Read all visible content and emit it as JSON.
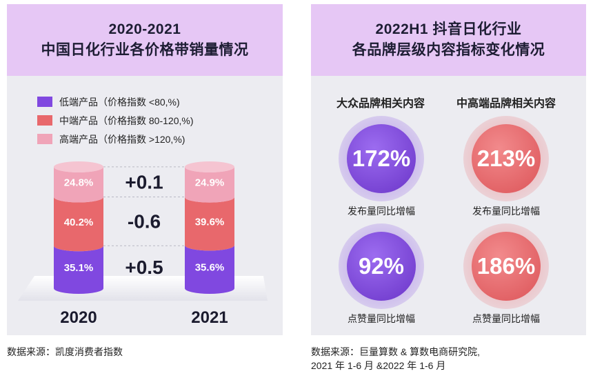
{
  "left_panel": {
    "title_line1": "2020-2021",
    "title_line2": "中国日化行业各价格带销量情况",
    "legend": [
      {
        "label": "低端产品（价格指数 <80,%)",
        "color": "#8048e0"
      },
      {
        "label": "中端产品（价格指数 80-120,%)",
        "color": "#e8686c"
      },
      {
        "label": "高端产品（价格指数 >120,%)",
        "color": "#f0a4b8"
      }
    ],
    "diffs": [
      "+0.1",
      "-0.6",
      "+0.5"
    ],
    "source": "数据来源：凯度消费者指数"
  },
  "chart_data": {
    "type": "bar",
    "stacked": true,
    "categories": [
      "2020",
      "2021"
    ],
    "series": [
      {
        "name": "低端产品（价格指数 <80,%)",
        "values": [
          35.1,
          35.6
        ],
        "labels": [
          "35.1%",
          "35.6%"
        ],
        "color": "#8048e0"
      },
      {
        "name": "中端产品（价格指数 80-120,%)",
        "values": [
          40.2,
          39.6
        ],
        "labels": [
          "40.2%",
          "39.6%"
        ],
        "color": "#e8686c"
      },
      {
        "name": "高端产品（价格指数 >120,%)",
        "values": [
          24.8,
          24.9
        ],
        "labels": [
          "24.8%",
          "24.9%"
        ],
        "color": "#f0a4b8"
      }
    ],
    "legend_position": "top-left"
  },
  "right_panel": {
    "title_line1": "2022H1 抖音日化行业",
    "title_line2": "各品牌层级内容指标变化情况",
    "col_titles": [
      "大众品牌相关内容",
      "中高端品牌相关内容"
    ],
    "metrics": [
      {
        "value": "172%",
        "label": "发布量同比增幅",
        "tone": "purple"
      },
      {
        "value": "213%",
        "label": "发布量同比增幅",
        "tone": "red"
      },
      {
        "value": "92%",
        "label": "点赞量同比增幅",
        "tone": "purple"
      },
      {
        "value": "186%",
        "label": "点赞量同比增幅",
        "tone": "red"
      }
    ],
    "source_line1": "数据来源：巨量算数 & 算数电商研究院,",
    "source_line2": "2021 年 1-6 月 &2022 年 1-6 月"
  },
  "colors": {
    "purple": "#8048e0",
    "red": "#e8686c",
    "pink": "#f0a4b8",
    "header_bg": "#e6c7f5",
    "panel_bg": "#ececf1"
  }
}
